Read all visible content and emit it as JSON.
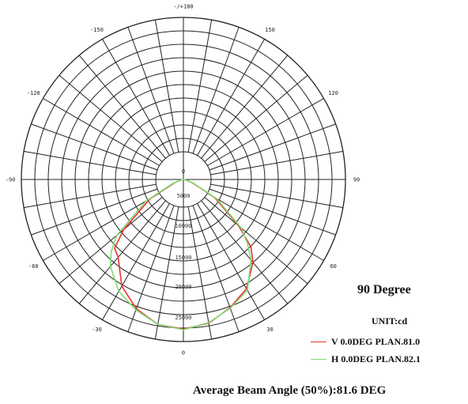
{
  "side_title": "90 Degree",
  "unit": "UNIT:cd",
  "footer": "Average Beam Angle (50%):81.6 DEG",
  "chart_data": {
    "type": "polar",
    "angle_labels": [
      {
        "deg": 0,
        "text": "0"
      },
      {
        "deg": 30,
        "text": "30"
      },
      {
        "deg": 60,
        "text": "60"
      },
      {
        "deg": 90,
        "text": "90"
      },
      {
        "deg": 120,
        "text": "120"
      },
      {
        "deg": 150,
        "text": "150"
      },
      {
        "deg": 180,
        "text": "-/+180"
      },
      {
        "deg": -150,
        "text": "-150"
      },
      {
        "deg": -120,
        "text": "-120"
      },
      {
        "deg": -90,
        "text": "-90"
      },
      {
        "deg": -60,
        "text": "-60"
      },
      {
        "deg": -30,
        "text": "-30"
      }
    ],
    "radial_ticks": [
      0,
      5000,
      10000,
      15000,
      20000,
      25000
    ],
    "radial_tick_labels": [
      "0",
      "5000",
      "10000",
      "15000",
      "20000",
      "25000"
    ],
    "r_max": 25000,
    "ring_count": 11,
    "ray_step_deg": 10,
    "series": [
      {
        "name": "V 0.0DEG PLAN.81.0",
        "color": "#e8322f",
        "points": [
          [
            -90,
            0
          ],
          [
            -80,
            300
          ],
          [
            -70,
            1500
          ],
          [
            -60,
            6400
          ],
          [
            -50,
            13000
          ],
          [
            -45,
            16200
          ],
          [
            -40,
            16900
          ],
          [
            -30,
            20500
          ],
          [
            -20,
            22900
          ],
          [
            -10,
            24500
          ],
          [
            0,
            24900
          ],
          [
            10,
            24300
          ],
          [
            20,
            22700
          ],
          [
            30,
            21000
          ],
          [
            40,
            18000
          ],
          [
            45,
            15900
          ],
          [
            50,
            12000
          ],
          [
            60,
            6000
          ],
          [
            70,
            1500
          ],
          [
            80,
            300
          ],
          [
            90,
            0
          ]
        ]
      },
      {
        "name": "H 0.0DEG PLAN.82.1",
        "color": "#7fdc72",
        "points": [
          [
            -90,
            0
          ],
          [
            -80,
            300
          ],
          [
            -70,
            1800
          ],
          [
            -60,
            7200
          ],
          [
            -50,
            14500
          ],
          [
            -45,
            17000
          ],
          [
            -40,
            18900
          ],
          [
            -30,
            21500
          ],
          [
            -20,
            23100
          ],
          [
            -10,
            24500
          ],
          [
            0,
            25000
          ],
          [
            10,
            24200
          ],
          [
            20,
            22800
          ],
          [
            30,
            21300
          ],
          [
            40,
            17500
          ],
          [
            45,
            15100
          ],
          [
            50,
            12600
          ],
          [
            60,
            6400
          ],
          [
            70,
            1700
          ],
          [
            80,
            300
          ],
          [
            90,
            0
          ]
        ]
      }
    ]
  }
}
